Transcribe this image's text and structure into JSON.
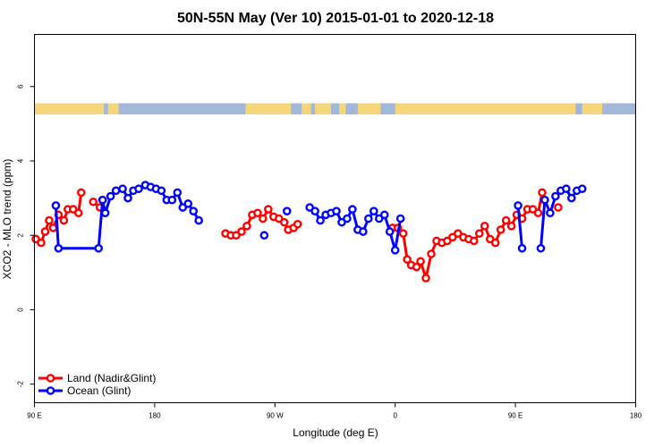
{
  "chart_data": {
    "type": "line",
    "title": "50N-55N May (Ver 10)   2015-01-01 to 2020-12-18",
    "xlabel": "Longitude (deg E)",
    "ylabel": "XCO2 - MLO trend (ppm)",
    "xlim": [
      90,
      540
    ],
    "ylim": [
      -2.5,
      7.4
    ],
    "xticks": [
      {
        "value": 90,
        "label": "90 E"
      },
      {
        "value": 180,
        "label": "180"
      },
      {
        "value": 270,
        "label": "90 W"
      },
      {
        "value": 360,
        "label": "0"
      },
      {
        "value": 450,
        "label": "90 E"
      },
      {
        "value": 540,
        "label": "180"
      }
    ],
    "yticks": [
      -2,
      0,
      2,
      4,
      6
    ],
    "land_mask_band": {
      "y_range": [
        5.25,
        5.55
      ],
      "land_color": "#f5d67a",
      "ocean_color": "#a3b8d8",
      "land_spans": [
        [
          90,
          142
        ],
        [
          145,
          153
        ],
        [
          248,
          282
        ],
        [
          290,
          297
        ],
        [
          300,
          312
        ],
        [
          318,
          323
        ],
        [
          332,
          349
        ],
        [
          360,
          495
        ],
        [
          500,
          515
        ]
      ]
    },
    "series": [
      {
        "name": "Land (Nadir&Glint)",
        "color": "#ff0000",
        "points": [
          [
            91,
            1.9
          ],
          [
            95,
            1.8
          ],
          [
            98,
            2.1
          ],
          [
            101,
            2.4
          ],
          [
            104,
            2.2
          ],
          [
            108,
            2.55
          ],
          [
            112,
            2.4
          ],
          [
            115,
            2.7
          ],
          [
            119,
            2.7
          ],
          [
            123,
            2.6
          ],
          [
            125,
            3.15
          ],
          null,
          [
            134,
            2.9
          ],
          [
            139,
            2.75
          ],
          null,
          [
            233,
            2.05
          ],
          [
            237,
            2.0
          ],
          [
            241,
            2.0
          ],
          [
            245,
            2.1
          ],
          [
            249,
            2.25
          ],
          [
            253,
            2.55
          ],
          [
            257,
            2.6
          ],
          [
            261,
            2.45
          ],
          [
            265,
            2.7
          ],
          [
            269,
            2.5
          ],
          [
            273,
            2.45
          ],
          [
            277,
            2.35
          ],
          [
            280,
            2.15
          ],
          [
            284,
            2.2
          ],
          [
            287,
            2.3
          ],
          null,
          [
            358,
            2.2
          ],
          [
            362,
            2.2
          ],
          [
            366,
            2.05
          ],
          [
            369,
            1.35
          ],
          [
            372,
            1.2
          ],
          [
            376,
            1.15
          ],
          [
            379,
            1.3
          ],
          [
            383,
            0.85
          ],
          [
            387,
            1.5
          ],
          [
            391,
            1.85
          ],
          [
            395,
            1.8
          ],
          [
            399,
            1.85
          ],
          [
            403,
            1.95
          ],
          [
            407,
            2.05
          ],
          [
            411,
            1.95
          ],
          [
            415,
            1.9
          ],
          [
            419,
            1.85
          ],
          [
            423,
            2.05
          ],
          [
            427,
            2.25
          ],
          [
            431,
            1.9
          ],
          [
            435,
            1.8
          ],
          [
            439,
            2.15
          ],
          [
            443,
            2.4
          ],
          [
            447,
            2.25
          ],
          [
            451,
            2.55
          ],
          [
            455,
            2.45
          ],
          [
            459,
            2.7
          ],
          [
            463,
            2.7
          ],
          [
            467,
            2.6
          ],
          [
            470,
            3.15
          ],
          null,
          [
            482,
            2.75
          ]
        ]
      },
      {
        "name": "Ocean (Glint)",
        "color": "#0000ff",
        "points": [
          [
            106,
            2.8
          ],
          [
            108,
            1.65
          ],
          [
            138,
            1.65
          ],
          [
            141,
            2.95
          ],
          [
            143,
            2.6
          ],
          [
            147,
            3.05
          ],
          [
            151,
            3.2
          ],
          [
            156,
            3.25
          ],
          [
            160,
            3.0
          ],
          [
            164,
            3.2
          ],
          [
            168,
            3.25
          ],
          [
            173,
            3.35
          ],
          [
            177,
            3.3
          ],
          [
            181,
            3.25
          ],
          [
            185,
            3.2
          ],
          [
            189,
            2.95
          ],
          [
            193,
            2.95
          ],
          [
            197,
            3.15
          ],
          [
            201,
            2.75
          ],
          [
            205,
            2.85
          ],
          [
            209,
            2.65
          ],
          [
            213,
            2.4
          ],
          null,
          [
            262,
            2.0
          ],
          null,
          [
            279,
            2.65
          ],
          null,
          [
            296,
            2.75
          ],
          [
            300,
            2.65
          ],
          [
            304,
            2.4
          ],
          [
            308,
            2.55
          ],
          [
            312,
            2.6
          ],
          [
            316,
            2.65
          ],
          [
            320,
            2.35
          ],
          [
            324,
            2.45
          ],
          [
            328,
            2.7
          ],
          [
            332,
            2.15
          ],
          [
            336,
            2.1
          ],
          [
            340,
            2.45
          ],
          [
            344,
            2.65
          ],
          [
            348,
            2.45
          ],
          [
            352,
            2.55
          ],
          [
            356,
            2.1
          ],
          [
            360,
            1.6
          ],
          [
            364,
            2.45
          ],
          null,
          [
            469,
            1.65
          ],
          [
            472,
            2.95
          ],
          [
            476,
            2.6
          ],
          [
            480,
            3.05
          ],
          [
            484,
            3.2
          ],
          [
            488,
            3.25
          ],
          [
            492,
            3.0
          ],
          [
            496,
            3.2
          ],
          [
            500,
            3.25
          ]
        ]
      }
    ],
    "extra_ocean_points": [
      [
        452,
        2.8
      ],
      [
        455,
        1.65
      ]
    ],
    "legend": {
      "position": "bottom-left"
    },
    "grid": false
  }
}
